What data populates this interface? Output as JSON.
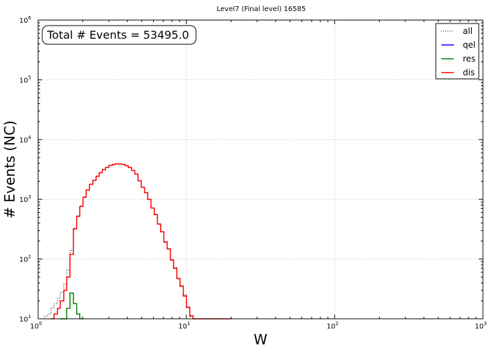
{
  "chart_data": {
    "type": "histogram-step",
    "title": "Level7 (Final level) 16585",
    "xlabel": "W",
    "ylabel": "# Events (NC)",
    "xscale": "log",
    "yscale": "log",
    "xlim": [
      1,
      1000
    ],
    "ylim": [
      10,
      1000000
    ],
    "grid": true,
    "x_ticks": [
      {
        "value": 1,
        "base": "10",
        "exp": "0"
      },
      {
        "value": 10,
        "base": "10",
        "exp": "1"
      },
      {
        "value": 100,
        "base": "10",
        "exp": "2"
      },
      {
        "value": 1000,
        "base": "10",
        "exp": "3"
      }
    ],
    "y_ticks": [
      {
        "value": 10,
        "base": "10",
        "exp": "1"
      },
      {
        "value": 100,
        "base": "10",
        "exp": "2"
      },
      {
        "value": 1000,
        "base": "10",
        "exp": "3"
      },
      {
        "value": 10000,
        "base": "10",
        "exp": "4"
      },
      {
        "value": 100000,
        "base": "10",
        "exp": "5"
      },
      {
        "value": 1000000,
        "base": "10",
        "exp": "6"
      }
    ],
    "annotation": "Total # Events = 53495.0",
    "legend_position": "top-right",
    "series": [
      {
        "name": "all",
        "color": "#000000",
        "style": "dotted",
        "bin_edges": [
          1.0,
          1.05,
          1.1,
          1.16,
          1.22,
          1.28,
          1.35,
          1.41,
          1.49,
          1.56,
          1.64,
          1.73,
          1.82,
          1.91,
          2.01,
          2.11,
          2.22,
          2.34,
          2.46,
          2.58,
          2.71,
          2.85,
          3.0,
          3.16,
          3.32,
          3.49,
          3.67,
          3.86,
          4.06,
          4.27,
          4.49,
          4.72,
          4.96,
          5.22,
          5.49,
          5.77,
          6.07,
          6.38,
          6.71,
          7.05,
          7.42,
          7.8,
          8.2,
          8.62,
          9.06,
          9.53,
          10.02,
          10.54,
          11.08,
          11.65,
          12.25,
          12.88,
          13.54,
          14.24,
          14.97,
          15.74,
          16.55,
          17.4,
          18.3,
          19.24,
          20.23
        ],
        "values": [
          10,
          10,
          11,
          12,
          15,
          18,
          22,
          28,
          38,
          65,
          140,
          330,
          530,
          780,
          1100,
          1450,
          1800,
          2100,
          2450,
          2800,
          3150,
          3450,
          3700,
          3850,
          3920,
          3900,
          3850,
          3650,
          3400,
          3050,
          2650,
          2050,
          1600,
          1300,
          1000,
          720,
          560,
          390,
          290,
          195,
          150,
          98,
          72,
          48,
          36,
          25,
          16,
          11.5,
          10,
          10,
          10,
          10,
          10,
          10,
          10,
          10,
          10,
          10,
          10,
          10
        ]
      },
      {
        "name": "qel",
        "color": "#0000ff",
        "style": "solid",
        "bin_edges": [],
        "values": []
      },
      {
        "name": "res",
        "color": "#008000",
        "style": "solid",
        "bin_edges": [
          1.41,
          1.49,
          1.56,
          1.64,
          1.73,
          1.82,
          1.91,
          2.01
        ],
        "values": [
          10,
          10,
          15,
          27,
          18,
          12,
          10
        ]
      },
      {
        "name": "dis",
        "color": "#ff0000",
        "style": "solid",
        "bin_edges": [
          1.22,
          1.28,
          1.35,
          1.41,
          1.49,
          1.56,
          1.64,
          1.73,
          1.82,
          1.91,
          2.01,
          2.11,
          2.22,
          2.34,
          2.46,
          2.58,
          2.71,
          2.85,
          3.0,
          3.16,
          3.32,
          3.49,
          3.67,
          3.86,
          4.06,
          4.27,
          4.49,
          4.72,
          4.96,
          5.22,
          5.49,
          5.77,
          6.07,
          6.38,
          6.71,
          7.05,
          7.42,
          7.8,
          8.2,
          8.62,
          9.06,
          9.53,
          10.02,
          10.54,
          11.08,
          11.65,
          12.25,
          12.88,
          13.54,
          14.24,
          14.97,
          15.74,
          16.55,
          17.4,
          18.3,
          19.24,
          20.23
        ],
        "values": [
          10,
          12,
          15,
          20,
          30,
          50,
          120,
          320,
          520,
          760,
          1080,
          1430,
          1780,
          2080,
          2430,
          2780,
          3130,
          3430,
          3690,
          3840,
          3910,
          3890,
          3840,
          3640,
          3390,
          3040,
          2640,
          2040,
          1590,
          1290,
          995,
          715,
          555,
          385,
          285,
          192,
          148,
          96,
          70,
          47,
          35,
          24,
          15.5,
          11,
          10,
          10,
          10,
          10,
          10,
          10,
          10,
          10,
          10,
          10,
          10,
          10
        ]
      }
    ]
  }
}
